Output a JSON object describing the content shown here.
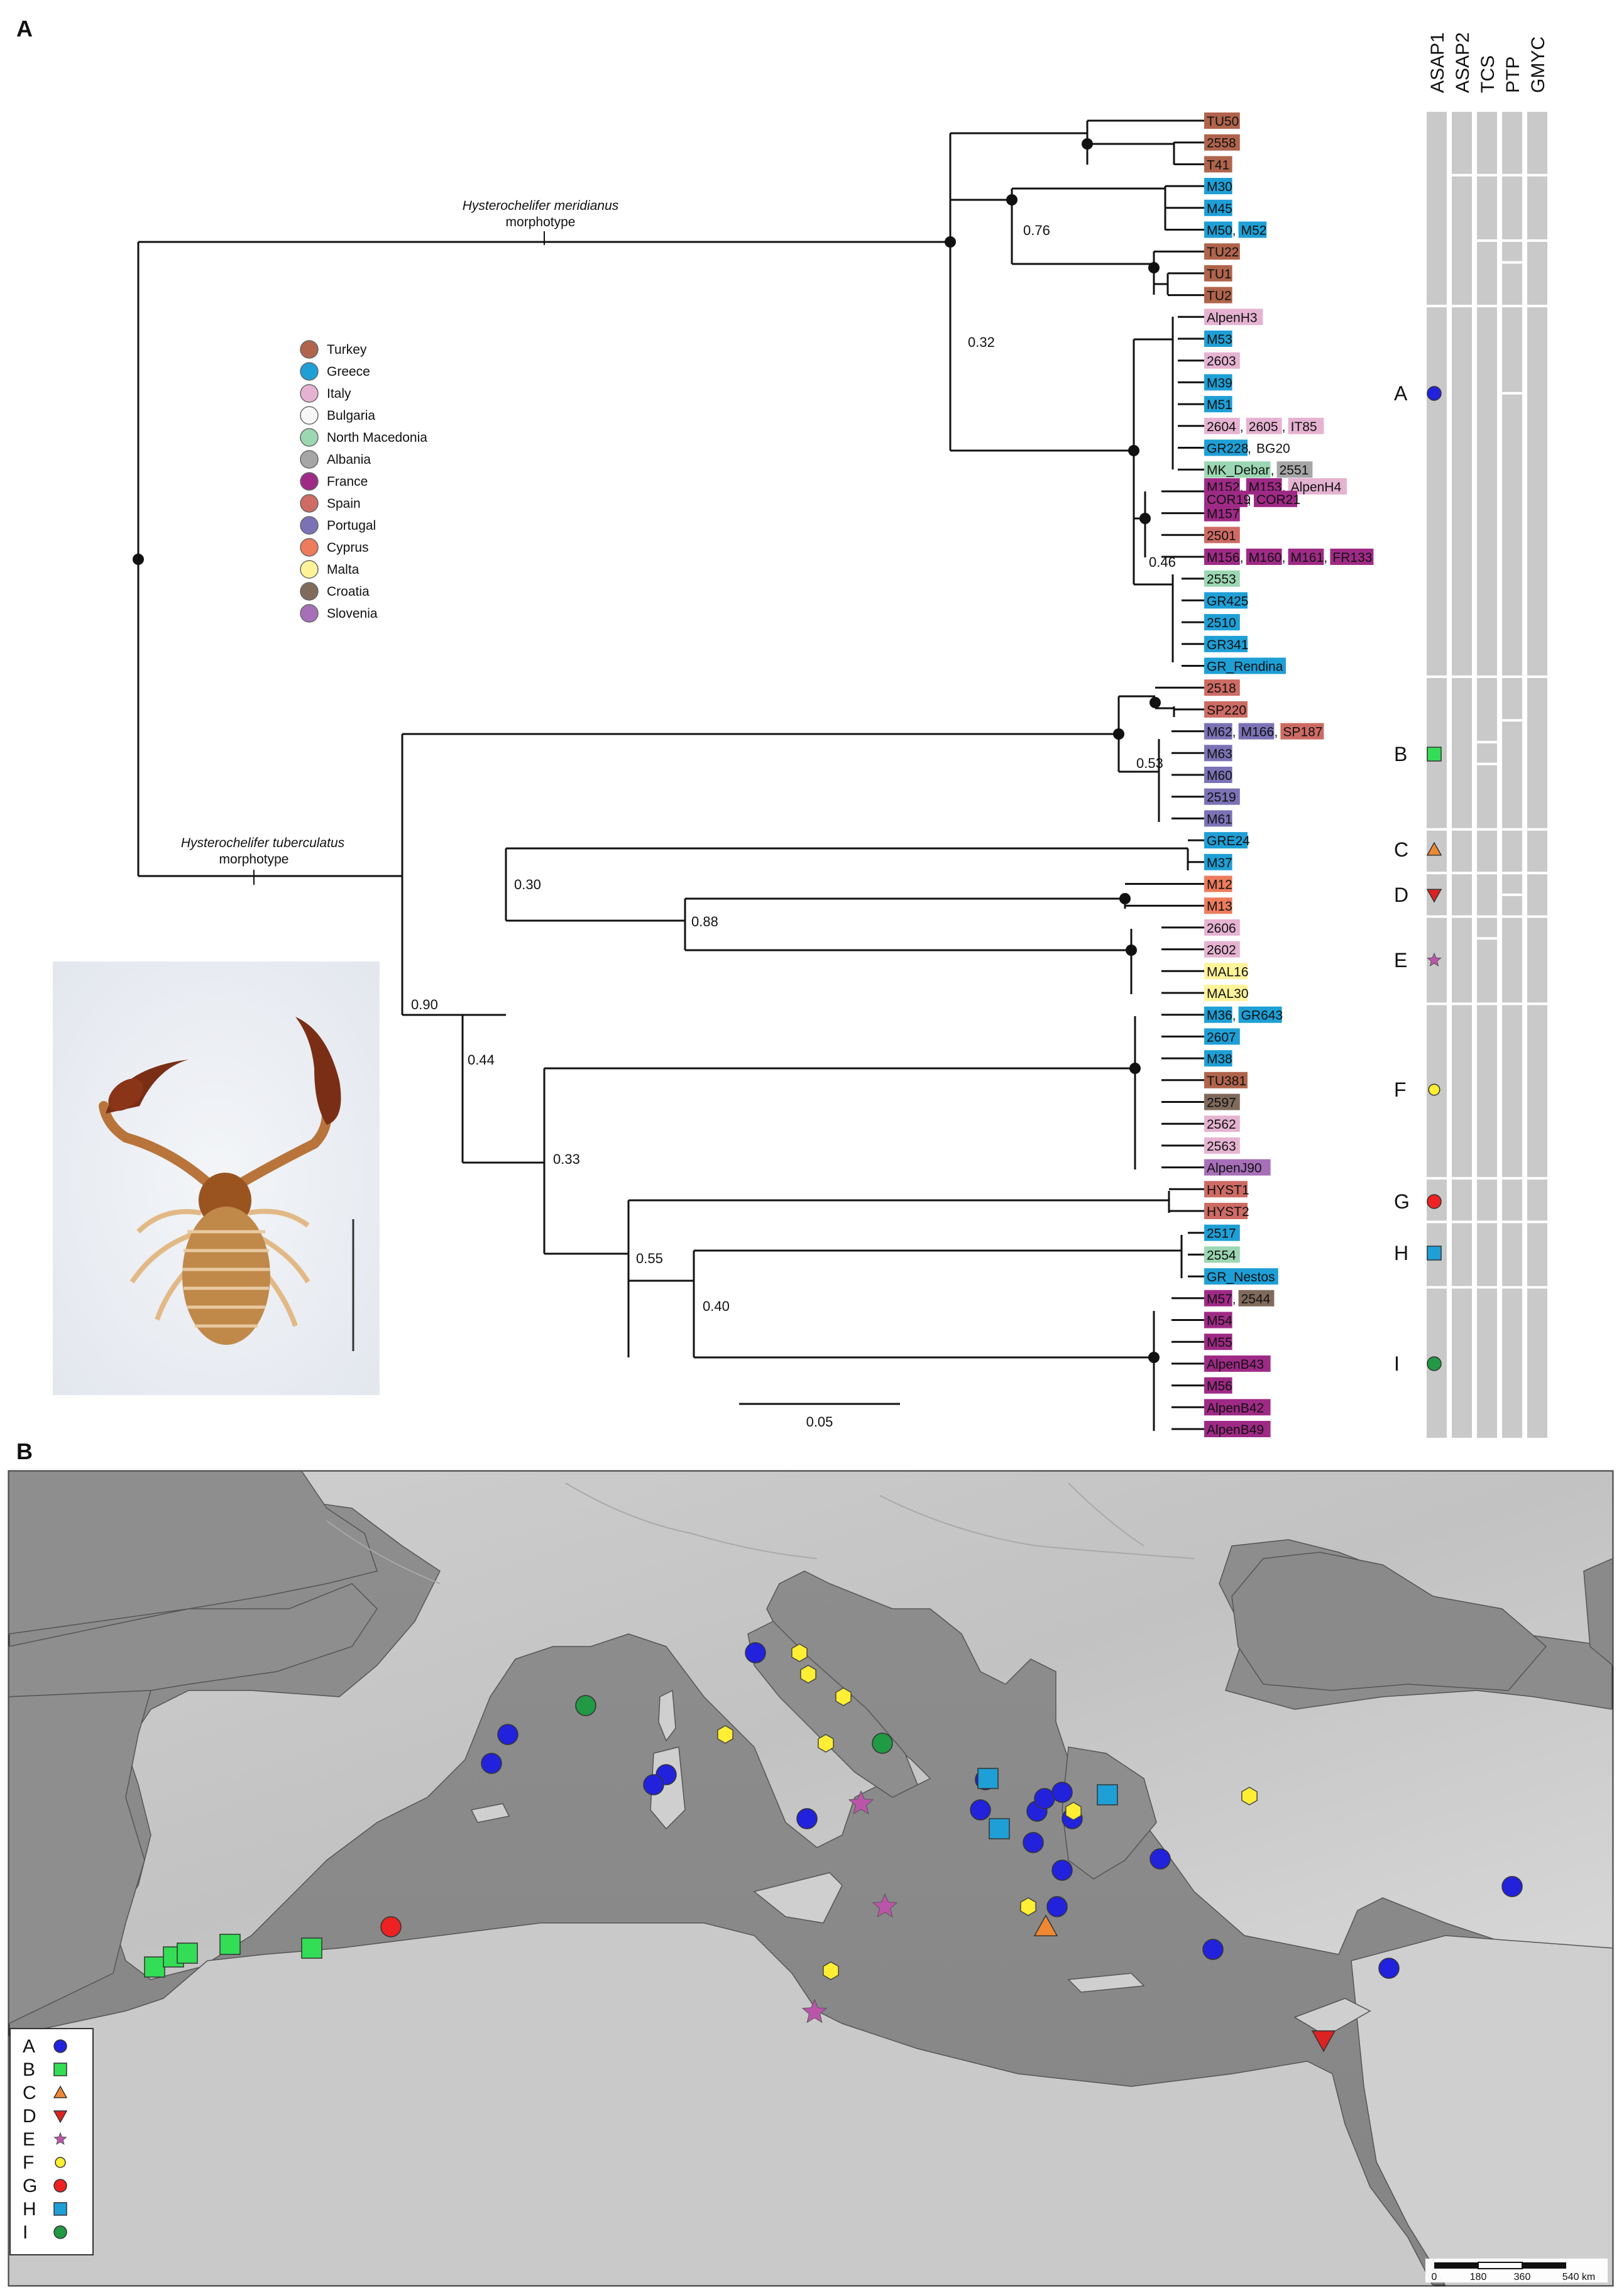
{
  "panels": {
    "a": "A",
    "b": "B"
  },
  "colors": {
    "Turkey": "#b0644c",
    "Greece": "#1e9fd6",
    "Italy": "#e5b3d1",
    "Bulgaria": "#f7f7f7",
    "North Macedonia": "#9bd7b2",
    "Albania": "#a6a6a6",
    "France": "#9f2a86",
    "Spain": "#cd6b64",
    "Portugal": "#7b72b6",
    "Cyprus": "#ed7b5c",
    "Malta": "#fff39a",
    "Croatia": "#7f6a5c",
    "Slovenia": "#a66fb8",
    "none": "#ffffff"
  },
  "legend": [
    "Turkey",
    "Greece",
    "Italy",
    "Bulgaria",
    "North Macedonia",
    "Albania",
    "France",
    "Spain",
    "Portugal",
    "Cyprus",
    "Malta",
    "Croatia",
    "Slovenia"
  ],
  "morphotypes": {
    "meridianus_name": "Hysterochelifer meridianus",
    "meridianus_suffix": "morphotype",
    "tuberculatus_name": "Hysterochelifer tuberculatus",
    "tuberculatus_suffix": "morphotype"
  },
  "methods": [
    "ASAP1",
    "ASAP2",
    "TCS",
    "PTP",
    "GMYC"
  ],
  "tips": [
    [
      {
        "t": "TU50",
        "c": "Turkey"
      }
    ],
    [
      {
        "t": "2558",
        "c": "Turkey"
      }
    ],
    [
      {
        "t": "T41",
        "c": "Turkey"
      }
    ],
    [
      {
        "t": "M30",
        "c": "Greece"
      }
    ],
    [
      {
        "t": "M45",
        "c": "Greece"
      }
    ],
    [
      {
        "t": "M50",
        "c": "Greece"
      },
      {
        "t": "M52",
        "c": "Greece"
      }
    ],
    [
      {
        "t": "TU22",
        "c": "Turkey"
      }
    ],
    [
      {
        "t": "TU1",
        "c": "Turkey"
      }
    ],
    [
      {
        "t": "TU2",
        "c": "Turkey"
      }
    ],
    [
      {
        "t": "AlpenH3",
        "c": "Italy"
      }
    ],
    [
      {
        "t": "M53",
        "c": "Greece"
      }
    ],
    [
      {
        "t": "2603",
        "c": "Italy"
      }
    ],
    [
      {
        "t": "M39",
        "c": "Greece"
      }
    ],
    [
      {
        "t": "M51",
        "c": "Greece"
      }
    ],
    [
      {
        "t": "2604",
        "c": "Italy"
      },
      {
        "t": "2605",
        "c": "Italy"
      },
      {
        "t": "IT85",
        "c": "Italy"
      }
    ],
    [
      {
        "t": "GR228",
        "c": "Greece"
      },
      {
        "t": "BG20",
        "c": "none"
      }
    ],
    [
      {
        "t": "MK_Debar",
        "c": "North Macedonia"
      },
      {
        "t": "2551",
        "c": "Albania"
      }
    ],
    [
      {
        "t": "M152",
        "c": "France"
      },
      {
        "t": "M153",
        "c": "France"
      },
      {
        "t": "AlpenH4",
        "c": "Italy"
      }
    ],
    [
      {
        "t": "M157",
        "c": "France"
      }
    ],
    [
      {
        "t": "2501",
        "c": "Spain"
      }
    ],
    [
      {
        "t": "M156",
        "c": "France"
      },
      {
        "t": "M160",
        "c": "France"
      },
      {
        "t": "M161",
        "c": "France"
      },
      {
        "t": "FR133",
        "c": "France"
      }
    ],
    [
      {
        "t": "2553",
        "c": "North Macedonia"
      }
    ],
    [
      {
        "t": "GR425",
        "c": "Greece"
      }
    ],
    [
      {
        "t": "2510",
        "c": "Greece"
      }
    ],
    [
      {
        "t": "GR341",
        "c": "Greece"
      }
    ],
    [
      {
        "t": "GR_Rendina",
        "c": "Greece"
      }
    ],
    [
      {
        "t": "2518",
        "c": "Spain"
      }
    ],
    [
      {
        "t": "SP220",
        "c": "Spain"
      }
    ],
    [
      {
        "t": "M62",
        "c": "Portugal"
      },
      {
        "t": "M166",
        "c": "Portugal"
      },
      {
        "t": "SP187",
        "c": "Spain"
      }
    ],
    [
      {
        "t": "M63",
        "c": "Portugal"
      }
    ],
    [
      {
        "t": "M60",
        "c": "Portugal"
      }
    ],
    [
      {
        "t": "2519",
        "c": "Portugal"
      }
    ],
    [
      {
        "t": "M61",
        "c": "Portugal"
      }
    ],
    [
      {
        "t": "GRE24",
        "c": "Greece"
      }
    ],
    [
      {
        "t": "M37",
        "c": "Greece"
      }
    ],
    [
      {
        "t": "M12",
        "c": "Cyprus"
      }
    ],
    [
      {
        "t": "M13",
        "c": "Cyprus"
      }
    ],
    [
      {
        "t": "2606",
        "c": "Italy"
      }
    ],
    [
      {
        "t": "2602",
        "c": "Italy"
      }
    ],
    [
      {
        "t": "MAL16",
        "c": "Malta"
      }
    ],
    [
      {
        "t": "MAL30",
        "c": "Malta"
      }
    ],
    [
      {
        "t": "M36",
        "c": "Greece"
      },
      {
        "t": "GR643",
        "c": "Greece"
      }
    ],
    [
      {
        "t": "2607",
        "c": "Greece"
      }
    ],
    [
      {
        "t": "M38",
        "c": "Greece"
      }
    ],
    [
      {
        "t": "TU381",
        "c": "Turkey"
      }
    ],
    [
      {
        "t": "2597",
        "c": "Croatia"
      }
    ],
    [
      {
        "t": "2562",
        "c": "Italy"
      }
    ],
    [
      {
        "t": "2563",
        "c": "Italy"
      }
    ],
    [
      {
        "t": "AlpenJ90",
        "c": "Slovenia"
      }
    ],
    [
      {
        "t": "HYST1",
        "c": "Spain"
      }
    ],
    [
      {
        "t": "HYST2",
        "c": "Spain"
      }
    ],
    [
      {
        "t": "2517",
        "c": "Greece"
      }
    ],
    [
      {
        "t": "2554",
        "c": "North Macedonia"
      }
    ],
    [
      {
        "t": "GR_Nestos",
        "c": "Greece"
      }
    ],
    [
      {
        "t": "M57",
        "c": "France"
      },
      {
        "t": "2544",
        "c": "Croatia"
      }
    ],
    [
      {
        "t": "M54",
        "c": "France"
      }
    ],
    [
      {
        "t": "M55",
        "c": "France"
      }
    ],
    [
      {
        "t": "AlpenB43",
        "c": "France"
      }
    ],
    [
      {
        "t": "M56",
        "c": "France"
      }
    ],
    [
      {
        "t": "AlpenB42",
        "c": "France"
      }
    ],
    [
      {
        "t": "AlpenB49",
        "c": "France"
      }
    ]
  ],
  "extra_tip_line": [
    {
      "t": "COR19",
      "c": "France"
    },
    {
      "t": "COR21",
      "c": "France"
    }
  ],
  "support_values": [
    "0.76",
    "0.32",
    "0.46",
    "0.53",
    "0.90",
    "0.30",
    "0.88",
    "0.44",
    "0.33",
    "0.55",
    "0.40"
  ],
  "scale_bar": "0.05",
  "clades": [
    {
      "label": "A",
      "shape": "circle",
      "color": "#2222dd"
    },
    {
      "label": "B",
      "shape": "square",
      "color": "#33dd55"
    },
    {
      "label": "C",
      "shape": "triangle-up",
      "color": "#ee8833"
    },
    {
      "label": "D",
      "shape": "triangle-down",
      "color": "#dd2222"
    },
    {
      "label": "E",
      "shape": "star",
      "color": "#bb55aa"
    },
    {
      "label": "F",
      "shape": "circle-small",
      "color": "#ffee33"
    },
    {
      "label": "G",
      "shape": "circle",
      "color": "#ee2222"
    },
    {
      "label": "H",
      "shape": "square",
      "color": "#1e9fd6"
    },
    {
      "label": "I",
      "shape": "circle",
      "color": "#229944"
    }
  ],
  "map": {
    "scale_labels": [
      "0",
      "180",
      "360",
      "540 km"
    ],
    "legend_labels": [
      "A",
      "B",
      "C",
      "D",
      "E",
      "F",
      "G",
      "H",
      "I"
    ]
  }
}
